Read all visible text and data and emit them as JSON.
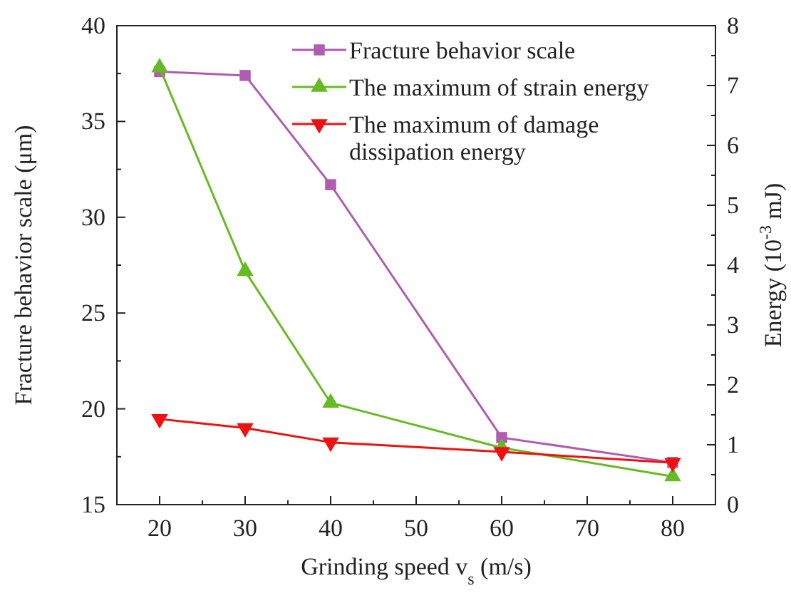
{
  "chart_data": {
    "type": "line",
    "xlabel": "Grinding speed v$_{s}$ (m/s)",
    "ylabel": "Fracture behavior scale (μm)",
    "y2label": "Energy (10$^{-3}$ mJ)",
    "x": [
      20,
      30,
      40,
      60,
      80
    ],
    "xlim": [
      15,
      85
    ],
    "xticks": [
      20,
      30,
      40,
      50,
      60,
      70,
      80
    ],
    "ylim": [
      15,
      40
    ],
    "yticks": [
      15,
      20,
      25,
      30,
      35,
      40
    ],
    "y2lim": [
      0,
      8
    ],
    "y2ticks": [
      0,
      1,
      2,
      3,
      4,
      5,
      6,
      7,
      8
    ],
    "legend": "top right",
    "grid": false,
    "line_style": "solid",
    "series": [
      {
        "name": "Fracture behavior scale",
        "color": "#b05cb0",
        "marker": "square",
        "values": [
          37.6,
          37.4,
          31.7,
          18.5,
          17.2
        ]
      },
      {
        "name": "The maximum of strain energy",
        "color": "#66bb22",
        "marker": "triangle",
        "axis": "y2",
        "values": [
          7.3,
          3.9,
          1.7,
          0.95,
          0.47
        ]
      },
      {
        "name": "The maximum of damage dissipation energy",
        "color": "#ee1111",
        "marker": "triangle-down",
        "axis": "y2",
        "values": [
          1.43,
          1.28,
          1.04,
          0.88,
          0.7
        ]
      }
    ]
  }
}
